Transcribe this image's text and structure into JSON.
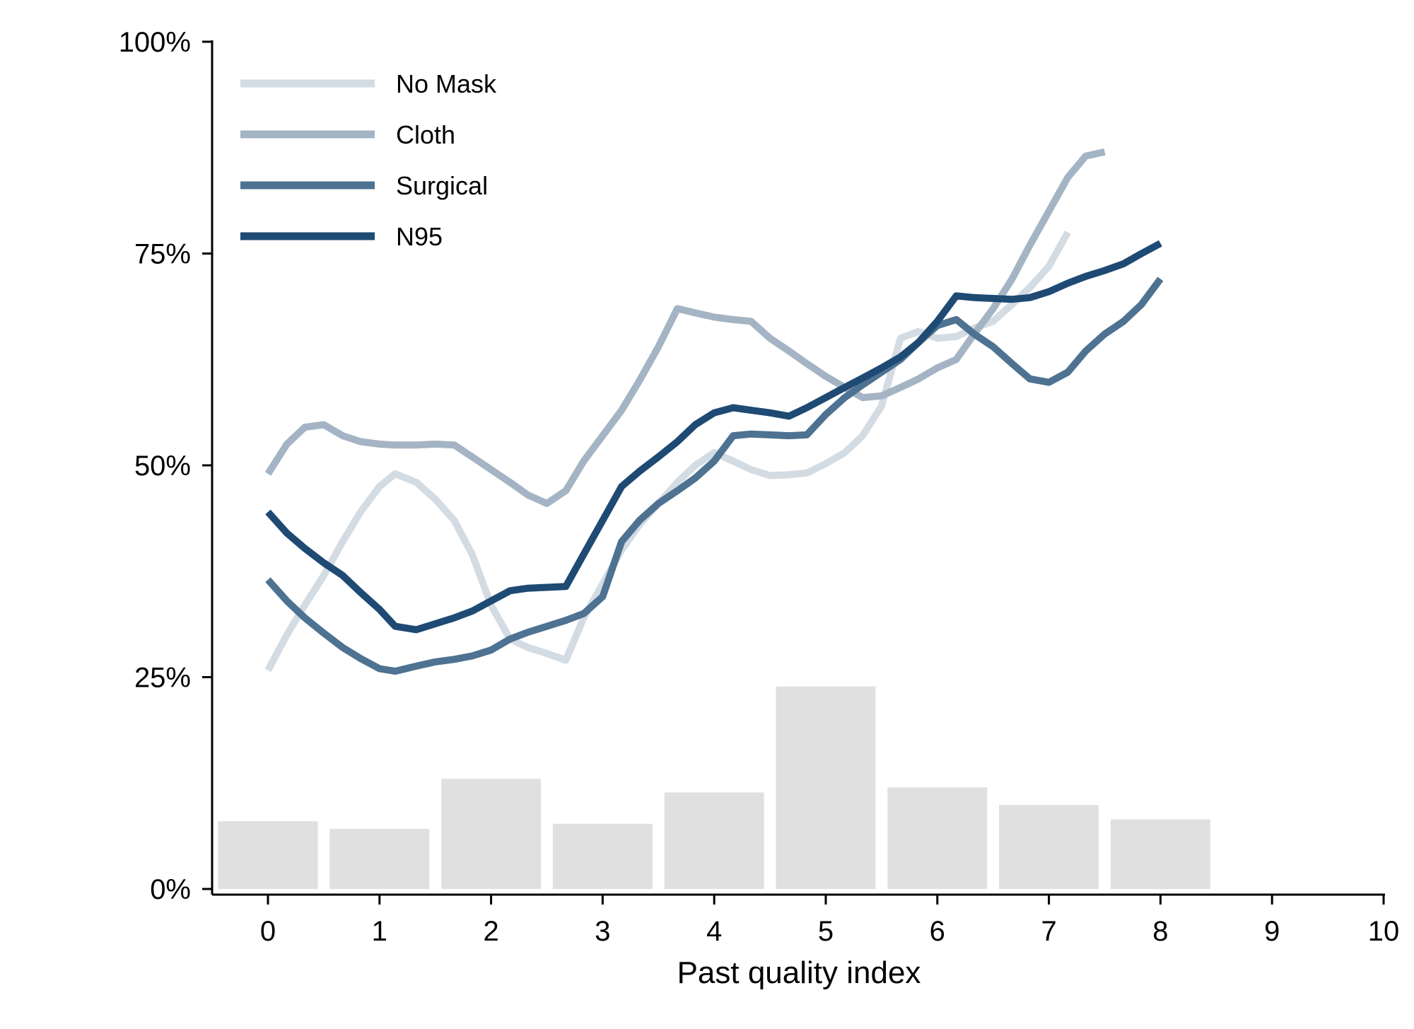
{
  "chart_data": {
    "type": "line",
    "xlabel": "Past quality index",
    "ylabel": "",
    "xlim": [
      -0.5,
      10
    ],
    "ylim": [
      0,
      100
    ],
    "x_ticks": [
      0,
      1,
      2,
      3,
      4,
      5,
      6,
      7,
      8,
      9,
      10
    ],
    "x_tick_labels": [
      "0",
      "1",
      "2",
      "3",
      "4",
      "5",
      "6",
      "7",
      "8",
      "9",
      "10"
    ],
    "y_ticks": [
      0,
      25,
      50,
      75,
      100
    ],
    "y_tick_labels": [
      "0%",
      "25%",
      "50%",
      "75%",
      "100%"
    ],
    "grid": false,
    "legend_position": "top-left",
    "histogram": {
      "color": "#e0e0e0",
      "bars": [
        {
          "x": 0,
          "value": 8.0
        },
        {
          "x": 1,
          "value": 7.1
        },
        {
          "x": 2,
          "value": 13.0
        },
        {
          "x": 3,
          "value": 7.7
        },
        {
          "x": 4,
          "value": 11.4
        },
        {
          "x": 5,
          "value": 23.9
        },
        {
          "x": 6,
          "value": 12.0
        },
        {
          "x": 7,
          "value": 9.9
        },
        {
          "x": 8,
          "value": 8.2
        }
      ]
    },
    "series": [
      {
        "name": "No Mask",
        "color": "#d3dbe3",
        "points": [
          [
            0,
            25.8
          ],
          [
            0.17,
            30
          ],
          [
            0.33,
            33.5
          ],
          [
            0.5,
            37
          ],
          [
            0.67,
            41
          ],
          [
            0.83,
            44.5
          ],
          [
            1.0,
            47.5
          ],
          [
            1.14,
            49.0
          ],
          [
            1.33,
            48.0
          ],
          [
            1.5,
            46.0
          ],
          [
            1.67,
            43.5
          ],
          [
            1.83,
            39.5
          ],
          [
            2.0,
            33.5
          ],
          [
            2.17,
            29.5
          ],
          [
            2.33,
            28.5
          ],
          [
            2.5,
            27.8
          ],
          [
            2.67,
            27.0
          ],
          [
            2.83,
            32.0
          ],
          [
            3.0,
            36.0
          ],
          [
            3.17,
            40.0
          ],
          [
            3.33,
            43.0
          ],
          [
            3.5,
            45.5
          ],
          [
            3.67,
            48.0
          ],
          [
            3.83,
            50.0
          ],
          [
            4.0,
            51.5
          ],
          [
            4.17,
            50.5
          ],
          [
            4.33,
            49.5
          ],
          [
            4.5,
            48.8
          ],
          [
            4.67,
            48.9
          ],
          [
            4.83,
            49.1
          ],
          [
            5.0,
            50.2
          ],
          [
            5.17,
            51.5
          ],
          [
            5.33,
            53.5
          ],
          [
            5.5,
            57.0
          ],
          [
            5.67,
            65.0
          ],
          [
            5.83,
            65.8
          ],
          [
            6.0,
            65.0
          ],
          [
            6.17,
            65.2
          ],
          [
            6.33,
            66.2
          ],
          [
            6.5,
            67.0
          ],
          [
            6.67,
            69.0
          ],
          [
            6.83,
            71.0
          ],
          [
            7.0,
            73.5
          ],
          [
            7.17,
            77.5
          ]
        ]
      },
      {
        "name": "Cloth",
        "color": "#a4b4c4",
        "points": [
          [
            0,
            49.0
          ],
          [
            0.17,
            52.5
          ],
          [
            0.33,
            54.5
          ],
          [
            0.5,
            54.8
          ],
          [
            0.67,
            53.5
          ],
          [
            0.83,
            52.8
          ],
          [
            1.0,
            52.5
          ],
          [
            1.14,
            52.4
          ],
          [
            1.33,
            52.4
          ],
          [
            1.5,
            52.5
          ],
          [
            1.67,
            52.4
          ],
          [
            1.83,
            51.0
          ],
          [
            2.0,
            49.5
          ],
          [
            2.17,
            48.0
          ],
          [
            2.33,
            46.5
          ],
          [
            2.5,
            45.5
          ],
          [
            2.67,
            47.0
          ],
          [
            2.83,
            50.5
          ],
          [
            3.0,
            53.5
          ],
          [
            3.17,
            56.5
          ],
          [
            3.33,
            60.0
          ],
          [
            3.5,
            64.0
          ],
          [
            3.67,
            68.5
          ],
          [
            3.83,
            68.0
          ],
          [
            4.0,
            67.5
          ],
          [
            4.17,
            67.2
          ],
          [
            4.33,
            67.0
          ],
          [
            4.5,
            65.0
          ],
          [
            4.67,
            63.5
          ],
          [
            4.83,
            62.0
          ],
          [
            5.0,
            60.5
          ],
          [
            5.17,
            59.2
          ],
          [
            5.33,
            58.0
          ],
          [
            5.5,
            58.2
          ],
          [
            5.67,
            59.2
          ],
          [
            5.83,
            60.2
          ],
          [
            6.0,
            61.5
          ],
          [
            6.17,
            62.5
          ],
          [
            6.33,
            65.5
          ],
          [
            6.5,
            68.5
          ],
          [
            6.67,
            72.0
          ],
          [
            6.83,
            76.0
          ],
          [
            7.0,
            80.0
          ],
          [
            7.17,
            84.0
          ],
          [
            7.33,
            86.5
          ],
          [
            7.5,
            87.0
          ]
        ]
      },
      {
        "name": "Surgical",
        "color": "#4e7291",
        "points": [
          [
            0,
            36.5
          ],
          [
            0.17,
            34.0
          ],
          [
            0.33,
            32.0
          ],
          [
            0.5,
            30.2
          ],
          [
            0.67,
            28.5
          ],
          [
            0.83,
            27.2
          ],
          [
            1.0,
            26.0
          ],
          [
            1.14,
            25.7
          ],
          [
            1.33,
            26.3
          ],
          [
            1.5,
            26.8
          ],
          [
            1.67,
            27.1
          ],
          [
            1.83,
            27.5
          ],
          [
            2.0,
            28.2
          ],
          [
            2.17,
            29.5
          ],
          [
            2.33,
            30.3
          ],
          [
            2.5,
            31.0
          ],
          [
            2.67,
            31.7
          ],
          [
            2.83,
            32.5
          ],
          [
            3.0,
            34.5
          ],
          [
            3.17,
            41.0
          ],
          [
            3.33,
            43.5
          ],
          [
            3.5,
            45.5
          ],
          [
            3.67,
            47.0
          ],
          [
            3.83,
            48.5
          ],
          [
            4.0,
            50.5
          ],
          [
            4.17,
            53.5
          ],
          [
            4.33,
            53.7
          ],
          [
            4.5,
            53.6
          ],
          [
            4.67,
            53.5
          ],
          [
            4.83,
            53.6
          ],
          [
            5.0,
            56.0
          ],
          [
            5.17,
            58.0
          ],
          [
            5.33,
            59.5
          ],
          [
            5.5,
            61.0
          ],
          [
            5.67,
            62.5
          ],
          [
            5.83,
            64.5
          ],
          [
            6.0,
            66.5
          ],
          [
            6.17,
            67.2
          ],
          [
            6.33,
            65.5
          ],
          [
            6.5,
            64.0
          ],
          [
            6.67,
            62.0
          ],
          [
            6.83,
            60.2
          ],
          [
            7.0,
            59.8
          ],
          [
            7.17,
            61.0
          ],
          [
            7.33,
            63.5
          ],
          [
            7.5,
            65.5
          ],
          [
            7.67,
            67.0
          ],
          [
            7.83,
            69.0
          ],
          [
            8.0,
            72.0
          ]
        ]
      },
      {
        "name": "N95",
        "color": "#1e4a73",
        "points": [
          [
            0,
            44.5
          ],
          [
            0.17,
            42.0
          ],
          [
            0.33,
            40.2
          ],
          [
            0.5,
            38.5
          ],
          [
            0.67,
            37.0
          ],
          [
            0.83,
            35.0
          ],
          [
            1.0,
            33.0
          ],
          [
            1.14,
            31.0
          ],
          [
            1.33,
            30.6
          ],
          [
            1.5,
            31.3
          ],
          [
            1.67,
            32.0
          ],
          [
            1.83,
            32.8
          ],
          [
            2.0,
            34.0
          ],
          [
            2.17,
            35.2
          ],
          [
            2.33,
            35.5
          ],
          [
            2.5,
            35.6
          ],
          [
            2.67,
            35.7
          ],
          [
            2.83,
            39.5
          ],
          [
            3.0,
            43.5
          ],
          [
            3.17,
            47.5
          ],
          [
            3.33,
            49.3
          ],
          [
            3.5,
            51.0
          ],
          [
            3.67,
            52.8
          ],
          [
            3.83,
            54.8
          ],
          [
            4.0,
            56.2
          ],
          [
            4.17,
            56.8
          ],
          [
            4.33,
            56.5
          ],
          [
            4.5,
            56.2
          ],
          [
            4.67,
            55.8
          ],
          [
            4.83,
            56.8
          ],
          [
            5.0,
            58.0
          ],
          [
            5.17,
            59.2
          ],
          [
            5.33,
            60.3
          ],
          [
            5.5,
            61.5
          ],
          [
            5.67,
            62.8
          ],
          [
            5.83,
            64.5
          ],
          [
            6.0,
            67.0
          ],
          [
            6.17,
            70.0
          ],
          [
            6.33,
            69.8
          ],
          [
            6.5,
            69.7
          ],
          [
            6.67,
            69.6
          ],
          [
            6.83,
            69.8
          ],
          [
            7.0,
            70.5
          ],
          [
            7.17,
            71.5
          ],
          [
            7.33,
            72.3
          ],
          [
            7.5,
            73.0
          ],
          [
            7.67,
            73.8
          ],
          [
            7.83,
            75.0
          ],
          [
            8.0,
            76.2
          ]
        ]
      }
    ]
  }
}
